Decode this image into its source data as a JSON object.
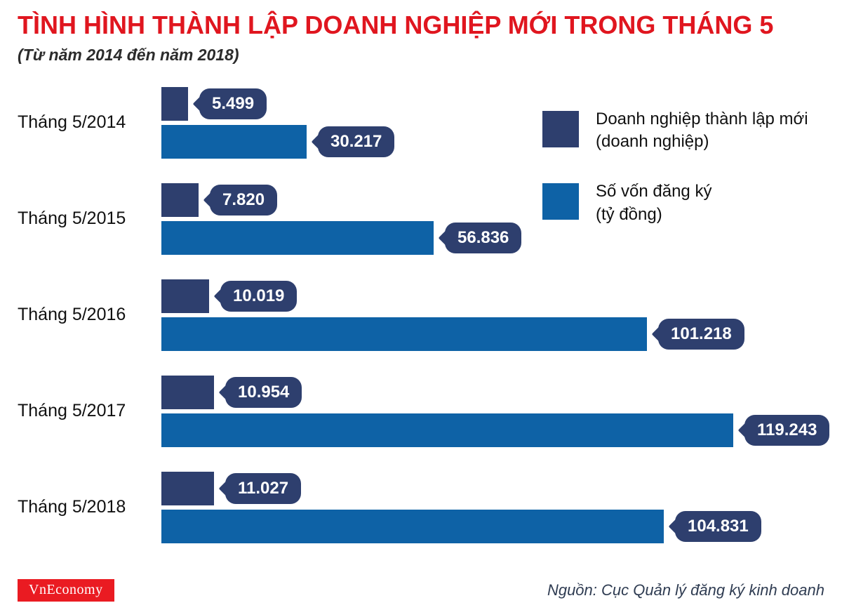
{
  "header": {
    "title": "TÌNH HÌNH THÀNH LẬP DOANH NGHIỆP MỚI TRONG THÁNG 5",
    "subtitle": "(Từ năm 2014 đến năm 2018)"
  },
  "colors": {
    "title_red": "#e0161f",
    "navy": "#2e3f6e",
    "blue": "#0e62a6",
    "pill": "#2e3f6e",
    "logo_red": "#ea1b22"
  },
  "legend": {
    "items": [
      {
        "line1": "Doanh nghiệp thành lập mới",
        "line2": "(doanh nghiệp)",
        "color": "navy"
      },
      {
        "line1": "Số vốn đăng ký",
        "line2": "(tỷ đồng)",
        "color": "blue"
      }
    ]
  },
  "chart_data": {
    "type": "bar",
    "orientation": "horizontal",
    "title": "TÌNH HÌNH THÀNH LẬP DOANH NGHIỆP MỚI TRONG THÁNG 5",
    "subtitle": "(Từ năm 2014 đến năm 2018)",
    "categories": [
      "Tháng 5/2014",
      "Tháng 5/2015",
      "Tháng 5/2016",
      "Tháng 5/2017",
      "Tháng 5/2018"
    ],
    "series": [
      {
        "name": "Doanh nghiệp thành lập mới (doanh nghiệp)",
        "color": "#2e3f6e",
        "values": [
          5499,
          7820,
          10019,
          10954,
          11027
        ],
        "labels": [
          "5.499",
          "7.820",
          "10.019",
          "10.954",
          "11.027"
        ]
      },
      {
        "name": "Số vốn đăng ký (tỷ đồng)",
        "color": "#0e62a6",
        "values": [
          30217,
          56836,
          101218,
          119243,
          104831
        ],
        "labels": [
          "30.217",
          "56.836",
          "101.218",
          "119.243",
          "104.831"
        ]
      }
    ],
    "xlim": [
      0,
      119243
    ],
    "grid": false,
    "legend_position": "top-right"
  },
  "footer": {
    "logo": "VnEconomy",
    "source": "Nguồn: Cục Quản lý đăng ký kinh doanh"
  }
}
